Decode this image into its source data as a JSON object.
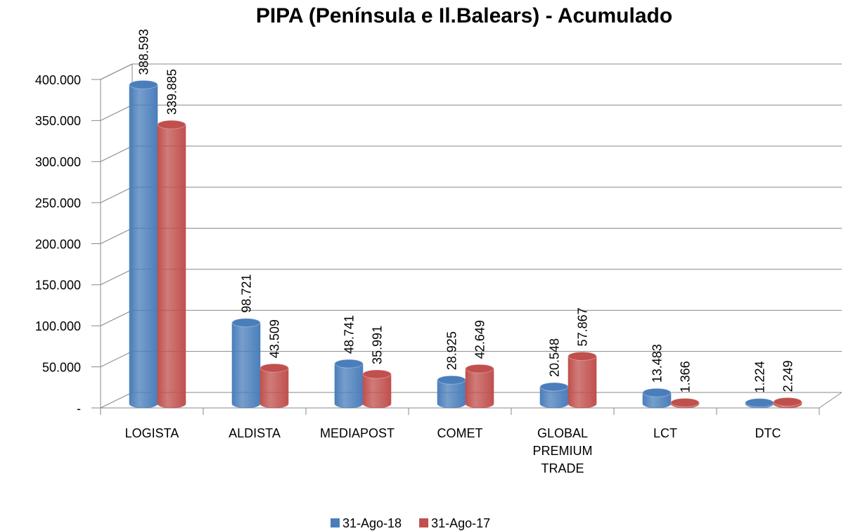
{
  "chart_data": {
    "type": "bar",
    "title": "PIPA  (Península e Il.Balears) - Acumulado",
    "categories": [
      "LOGISTA",
      "ALDISTA",
      "MEDIAPOST",
      "COMET",
      "GLOBAL PREMIUM TRADE",
      "LCT",
      "DTC"
    ],
    "series": [
      {
        "name": "31-Ago-18",
        "color": "#4a7ebb",
        "values": [
          388593,
          98721,
          48741,
          28925,
          20548,
          13483,
          1224
        ],
        "value_labels": [
          "388.593",
          "98.721",
          "48.741",
          "28.925",
          "20.548",
          "13.483",
          "1.224"
        ]
      },
      {
        "name": "31-Ago-17",
        "color": "#c0504d",
        "values": [
          339885,
          43509,
          35991,
          42649,
          57867,
          1366,
          2249
        ],
        "value_labels": [
          "339.885",
          "43.509",
          "35.991",
          "42.649",
          "57.867",
          "1.366",
          "2.249"
        ]
      }
    ],
    "ylim": [
      0,
      400000
    ],
    "yticks": [
      {
        "value": 0,
        "label": "-"
      },
      {
        "value": 50000,
        "label": "50.000"
      },
      {
        "value": 100000,
        "label": "100.000"
      },
      {
        "value": 150000,
        "label": "150.000"
      },
      {
        "value": 200000,
        "label": "200.000"
      },
      {
        "value": 250000,
        "label": "250.000"
      },
      {
        "value": 300000,
        "label": "300.000"
      },
      {
        "value": 350000,
        "label": "350.000"
      },
      {
        "value": 400000,
        "label": "400.000"
      }
    ],
    "grid": true,
    "legend": "bottom"
  }
}
